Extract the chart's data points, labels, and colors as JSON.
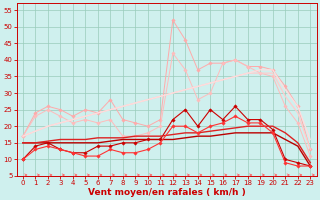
{
  "x": [
    0,
    1,
    2,
    3,
    4,
    5,
    6,
    7,
    8,
    9,
    10,
    11,
    12,
    13,
    14,
    15,
    16,
    17,
    18,
    19,
    20,
    21,
    22,
    23
  ],
  "series": [
    {
      "name": "peak_light1",
      "color": "#ffaaaa",
      "linewidth": 0.7,
      "marker": "D",
      "markersize": 1.8,
      "values": [
        17,
        24,
        26,
        25,
        23,
        25,
        24,
        28,
        22,
        21,
        20,
        22,
        52,
        46,
        37,
        39,
        39,
        40,
        38,
        38,
        37,
        32,
        26,
        13
      ]
    },
    {
      "name": "peak_light2",
      "color": "#ffbbbb",
      "linewidth": 0.7,
      "marker": "D",
      "markersize": 1.8,
      "values": [
        17,
        23,
        25,
        23,
        21,
        22,
        21,
        22,
        17,
        17,
        18,
        20,
        42,
        37,
        28,
        30,
        39,
        40,
        38,
        36,
        35,
        26,
        21,
        11
      ]
    },
    {
      "name": "ramp_light1",
      "color": "#ffcccc",
      "linewidth": 0.9,
      "marker": null,
      "markersize": 0,
      "values": [
        17,
        18.5,
        20,
        21,
        22,
        23,
        24,
        25,
        26,
        27,
        28,
        29,
        30,
        31,
        32,
        33,
        34,
        35,
        36,
        36,
        36,
        29,
        24,
        13
      ]
    },
    {
      "name": "ramp_light2",
      "color": "#ffdddd",
      "linewidth": 0.9,
      "marker": null,
      "markersize": 0,
      "values": [
        17,
        18.5,
        20,
        21,
        22,
        23,
        24,
        25,
        26,
        27,
        28,
        29,
        30,
        31,
        32,
        33,
        34,
        35,
        36,
        37,
        37,
        31,
        26,
        16
      ]
    },
    {
      "name": "dark_marker1",
      "color": "#cc0000",
      "linewidth": 0.8,
      "marker": "D",
      "markersize": 1.8,
      "values": [
        10,
        14,
        15,
        13,
        12,
        12,
        14,
        14,
        15,
        15,
        16,
        16,
        22,
        25,
        20,
        25,
        22,
        26,
        22,
        22,
        19,
        10,
        9,
        8
      ]
    },
    {
      "name": "dark_flat1",
      "color": "#bb0000",
      "linewidth": 1.0,
      "marker": null,
      "markersize": 0,
      "values": [
        15,
        15,
        15,
        15,
        15,
        15,
        15,
        15.5,
        16,
        16,
        16,
        16,
        16,
        16.5,
        17,
        17,
        17.5,
        18,
        18,
        18,
        18,
        16,
        14,
        8
      ]
    },
    {
      "name": "dark_flat2",
      "color": "#dd2222",
      "linewidth": 1.0,
      "marker": null,
      "markersize": 0,
      "values": [
        15,
        15,
        15.5,
        16,
        16,
        16,
        16.5,
        16.5,
        16.5,
        17,
        17,
        17,
        17.5,
        18,
        18,
        18.5,
        19,
        19.5,
        20,
        20,
        20,
        18,
        15,
        9
      ]
    },
    {
      "name": "dark_marker2",
      "color": "#ff3333",
      "linewidth": 0.8,
      "marker": "D",
      "markersize": 1.8,
      "values": [
        10,
        13,
        14,
        13,
        12,
        11,
        11,
        13,
        12,
        12,
        13,
        15,
        20,
        20,
        18,
        20,
        21,
        23,
        21,
        21,
        18,
        9,
        8,
        8
      ]
    }
  ],
  "arrows": {
    "color": "#ff5555",
    "y": 5.3
  },
  "xlim": [
    0,
    23
  ],
  "ylim": [
    5,
    57
  ],
  "yticks": [
    5,
    10,
    15,
    20,
    25,
    30,
    35,
    40,
    45,
    50,
    55
  ],
  "xticks": [
    0,
    1,
    2,
    3,
    4,
    5,
    6,
    7,
    8,
    9,
    10,
    11,
    12,
    13,
    14,
    15,
    16,
    17,
    18,
    19,
    20,
    21,
    22,
    23
  ],
  "xlabel": "Vent moyen/en rafales ( km/h )",
  "bgcolor": "#cff0ee",
  "grid_color": "#99ccbb",
  "tick_color": "#cc0000",
  "label_color": "#cc0000",
  "tick_fontsize": 5.0,
  "xlabel_fontsize": 6.5
}
